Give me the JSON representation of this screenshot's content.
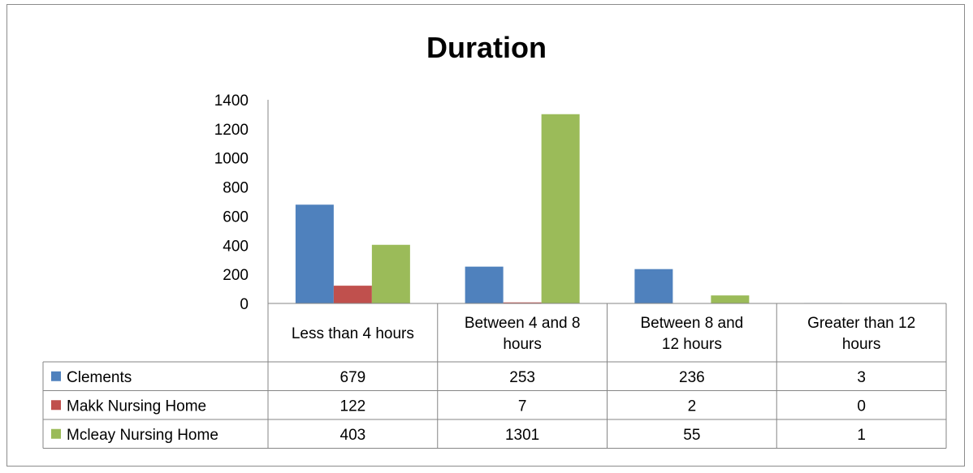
{
  "chart_data": {
    "type": "bar",
    "title": "Duration",
    "categories": [
      [
        "Less than 4 hours"
      ],
      [
        "Between 4 and 8",
        "hours"
      ],
      [
        "Between 8 and",
        "12 hours"
      ],
      [
        "Greater than 12",
        "hours"
      ]
    ],
    "series": [
      {
        "name": "Clements",
        "color": "#4f81bd",
        "values": [
          679,
          253,
          236,
          3
        ]
      },
      {
        "name": "Makk Nursing Home",
        "color": "#c0504d",
        "values": [
          122,
          7,
          2,
          0
        ]
      },
      {
        "name": "Mcleay Nursing Home",
        "color": "#9bbb59",
        "values": [
          403,
          1301,
          55,
          1
        ]
      }
    ],
    "ylim": [
      0,
      1400
    ],
    "yticks": [
      0,
      200,
      400,
      600,
      800,
      1000,
      1200,
      1400
    ],
    "grid": false,
    "legend": "data-table"
  }
}
